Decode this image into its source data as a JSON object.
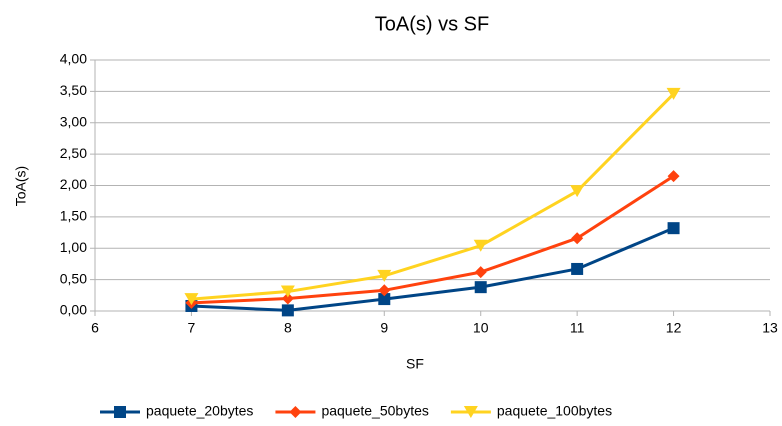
{
  "chart_data": {
    "type": "line",
    "title": "ToA(s) vs SF",
    "x_label": "SF",
    "y_label": "ToA(s)",
    "x": [
      7,
      8,
      9,
      10,
      11,
      12
    ],
    "series": [
      {
        "name": "paquete_20bytes",
        "color": "#004586",
        "marker": "square",
        "values": [
          0.08,
          0.01,
          0.19,
          0.38,
          0.67,
          1.32
        ]
      },
      {
        "name": "paquete_50bytes",
        "color": "#ff420e",
        "marker": "diamond",
        "values": [
          0.13,
          0.2,
          0.33,
          0.62,
          1.16,
          2.15
        ]
      },
      {
        "name": "paquete_100bytes",
        "color": "#ffd320",
        "marker": "triangle-down",
        "values": [
          0.19,
          0.31,
          0.56,
          1.04,
          1.91,
          3.46
        ]
      }
    ],
    "xlim": [
      6,
      13
    ],
    "xticks": [
      6,
      7,
      8,
      9,
      10,
      11,
      12,
      13
    ],
    "ylim": [
      0,
      4
    ],
    "yticks": [
      {
        "value": 0,
        "label": "0,00"
      },
      {
        "value": 0.5,
        "label": "0,50"
      },
      {
        "value": 1,
        "label": "1,00"
      },
      {
        "value": 1.5,
        "label": "1,50"
      },
      {
        "value": 2,
        "label": "2,00"
      },
      {
        "value": 2.5,
        "label": "2,50"
      },
      {
        "value": 3,
        "label": "3,00"
      },
      {
        "value": 3.5,
        "label": "3,50"
      },
      {
        "value": 4,
        "label": "4,00"
      }
    ],
    "grid": true,
    "legend": "bottom"
  }
}
